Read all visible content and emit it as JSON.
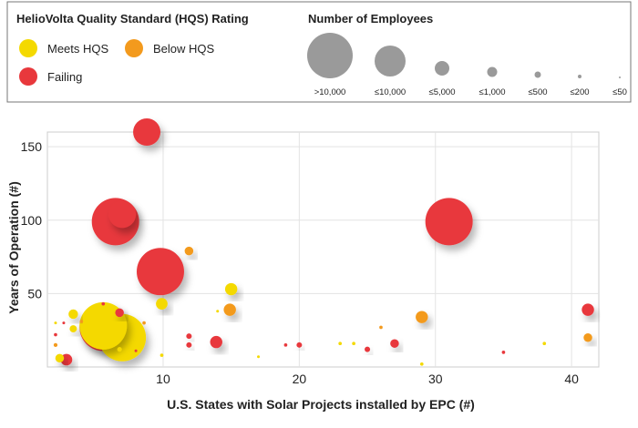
{
  "chart_data": {
    "type": "scatter",
    "title": "",
    "xlabel": "U.S. States with Solar Projects installed by EPC (#)",
    "ylabel": "Years of Operation (#)",
    "xlim": [
      1.5,
      42
    ],
    "ylim": [
      0,
      160
    ],
    "xticks": [
      10,
      20,
      30,
      40
    ],
    "yticks": [
      50,
      100,
      150
    ],
    "grid": true,
    "legend": {
      "color_title": "HelioVolta Quality Standard (HQS) Rating",
      "categories": [
        {
          "key": "meets",
          "label": "Meets HQS",
          "color": "#f4d900"
        },
        {
          "key": "below",
          "label": "Below HQS",
          "color": "#f39a1d"
        },
        {
          "key": "failing",
          "label": "Failing",
          "color": "#e8383c"
        }
      ],
      "size_title": "Number of Employees",
      "sizes": [
        {
          "label": ">10,000",
          "value": 30000
        },
        {
          "label": "≤10,000",
          "value": 10000
        },
        {
          "label": "≤5,000",
          "value": 5000
        },
        {
          "label": "≤1,000",
          "value": 1000
        },
        {
          "label": "≤500",
          "value": 500
        },
        {
          "label": "≤200",
          "value": 200
        },
        {
          "label": "≤50",
          "value": 50
        }
      ]
    },
    "points": [
      {
        "x": 8.8,
        "y": 160,
        "size": 10000,
        "rating": "failing"
      },
      {
        "x": 6.5,
        "y": 99,
        "size": 30000,
        "rating": "failing"
      },
      {
        "x": 7.0,
        "y": 104,
        "size": 10000,
        "rating": "failing"
      },
      {
        "x": 31.0,
        "y": 99,
        "size": 30000,
        "rating": "failing"
      },
      {
        "x": 9.8,
        "y": 65,
        "size": 30000,
        "rating": "failing"
      },
      {
        "x": 11.9,
        "y": 79,
        "size": 1000,
        "rating": "below"
      },
      {
        "x": 15.0,
        "y": 53,
        "size": 2000,
        "rating": "meets"
      },
      {
        "x": 9.9,
        "y": 43,
        "size": 1800,
        "rating": "meets"
      },
      {
        "x": 14.9,
        "y": 39,
        "size": 2000,
        "rating": "below"
      },
      {
        "x": 41.2,
        "y": 39,
        "size": 2000,
        "rating": "failing"
      },
      {
        "x": 29.0,
        "y": 34,
        "size": 2000,
        "rating": "below"
      },
      {
        "x": 13.9,
        "y": 17,
        "size": 2000,
        "rating": "failing"
      },
      {
        "x": 27.0,
        "y": 16,
        "size": 1000,
        "rating": "failing"
      },
      {
        "x": 41.2,
        "y": 20,
        "size": 1000,
        "rating": "below"
      },
      {
        "x": 6.8,
        "y": 37,
        "size": 1000,
        "rating": "failing"
      },
      {
        "x": 5.6,
        "y": 27,
        "size": 30000,
        "rating": "failing"
      },
      {
        "x": 7.0,
        "y": 20,
        "size": 30000,
        "rating": "meets"
      },
      {
        "x": 5.6,
        "y": 28,
        "size": 30000,
        "rating": "meets"
      },
      {
        "x": 3.4,
        "y": 36,
        "size": 1200,
        "rating": "meets"
      },
      {
        "x": 3.4,
        "y": 26,
        "size": 700,
        "rating": "meets"
      },
      {
        "x": 2.4,
        "y": 6,
        "size": 1000,
        "rating": "meets"
      },
      {
        "x": 2.9,
        "y": 5,
        "size": 1800,
        "rating": "failing"
      },
      {
        "x": 2.1,
        "y": 15,
        "size": 200,
        "rating": "below"
      },
      {
        "x": 2.1,
        "y": 22,
        "size": 150,
        "rating": "failing"
      },
      {
        "x": 2.1,
        "y": 30,
        "size": 100,
        "rating": "meets"
      },
      {
        "x": 2.7,
        "y": 30,
        "size": 100,
        "rating": "failing"
      },
      {
        "x": 4.0,
        "y": 31,
        "size": 150,
        "rating": "below"
      },
      {
        "x": 5.6,
        "y": 43,
        "size": 150,
        "rating": "failing"
      },
      {
        "x": 6.8,
        "y": 12,
        "size": 300,
        "rating": "meets"
      },
      {
        "x": 8.0,
        "y": 11,
        "size": 100,
        "rating": "failing"
      },
      {
        "x": 8.6,
        "y": 30,
        "size": 150,
        "rating": "below"
      },
      {
        "x": 9.9,
        "y": 8,
        "size": 150,
        "rating": "meets"
      },
      {
        "x": 11.9,
        "y": 21,
        "size": 400,
        "rating": "failing"
      },
      {
        "x": 11.9,
        "y": 15,
        "size": 400,
        "rating": "failing"
      },
      {
        "x": 14.0,
        "y": 38,
        "size": 100,
        "rating": "meets"
      },
      {
        "x": 17.0,
        "y": 7,
        "size": 100,
        "rating": "meets"
      },
      {
        "x": 19.0,
        "y": 15,
        "size": 150,
        "rating": "failing"
      },
      {
        "x": 20.0,
        "y": 15,
        "size": 400,
        "rating": "failing"
      },
      {
        "x": 23.0,
        "y": 16,
        "size": 150,
        "rating": "meets"
      },
      {
        "x": 24.0,
        "y": 16,
        "size": 150,
        "rating": "meets"
      },
      {
        "x": 25.0,
        "y": 12,
        "size": 400,
        "rating": "failing"
      },
      {
        "x": 26.0,
        "y": 27,
        "size": 150,
        "rating": "below"
      },
      {
        "x": 35.0,
        "y": 10,
        "size": 150,
        "rating": "failing"
      },
      {
        "x": 38.0,
        "y": 16,
        "size": 150,
        "rating": "meets"
      },
      {
        "x": 29.0,
        "y": 2,
        "size": 150,
        "rating": "meets"
      }
    ]
  }
}
